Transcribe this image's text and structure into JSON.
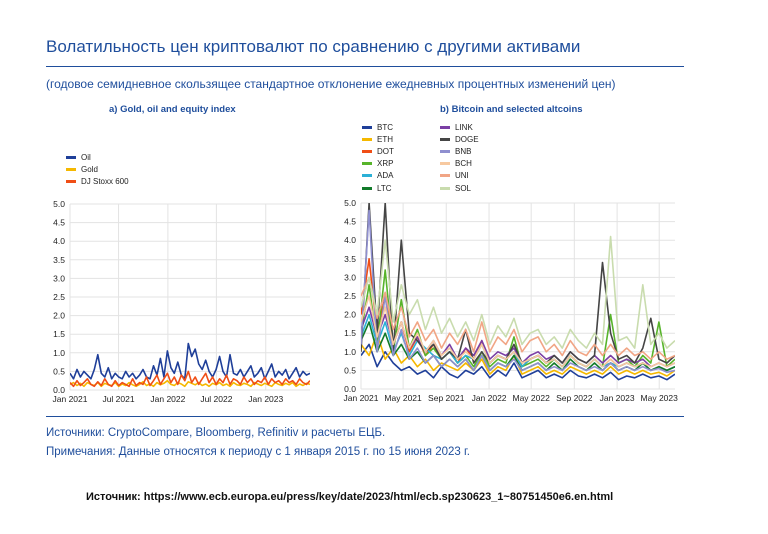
{
  "header": {
    "title": "Волатильность цен криптовалют по сравнению с другими активами",
    "subtitle": "(годовое семидневное скользящее стандартное отклонение ежедневных процентных изменений цен)"
  },
  "chart_data": [
    {
      "type": "line",
      "title": "a) Gold, oil and equity index",
      "ylim": [
        0,
        5
      ],
      "yticks": [
        "0.0",
        "0.5",
        "1.0",
        "1.5",
        "2.0",
        "2.5",
        "3.0",
        "3.5",
        "4.0",
        "4.5",
        "5.0"
      ],
      "xticks": [
        "Jan 2021",
        "Jul 2021",
        "Jan 2022",
        "Jul 2022",
        "Jan 2023"
      ],
      "xrange": [
        "2021-01-01",
        "2023-06-15"
      ],
      "grid": true,
      "legend_position": "top-left",
      "series": [
        {
          "name": "Oil",
          "color": "#1f3f99",
          "values": [
            0.45,
            0.3,
            0.55,
            0.35,
            0.5,
            0.4,
            0.3,
            0.55,
            0.95,
            0.45,
            0.35,
            0.6,
            0.3,
            0.45,
            0.35,
            0.3,
            0.5,
            0.35,
            0.45,
            0.3,
            0.4,
            0.55,
            0.35,
            0.3,
            0.65,
            0.4,
            0.85,
            0.35,
            1.05,
            0.6,
            0.45,
            0.75,
            0.4,
            0.3,
            1.25,
            0.9,
            1.1,
            0.7,
            0.55,
            0.8,
            0.5,
            0.35,
            0.55,
            0.9,
            0.5,
            0.35,
            0.95,
            0.45,
            0.4,
            0.55,
            0.35,
            0.5,
            0.65,
            0.35,
            0.45,
            0.6,
            0.3,
            0.5,
            0.7,
            0.35,
            0.5,
            0.4,
            0.55,
            0.3,
            0.45,
            0.6,
            0.35,
            0.5,
            0.4,
            0.45
          ]
        },
        {
          "name": "Gold",
          "color": "#f5b800",
          "values": [
            0.15,
            0.2,
            0.12,
            0.18,
            0.1,
            0.2,
            0.15,
            0.12,
            0.2,
            0.1,
            0.18,
            0.14,
            0.12,
            0.2,
            0.1,
            0.16,
            0.12,
            0.2,
            0.14,
            0.1,
            0.15,
            0.22,
            0.12,
            0.16,
            0.1,
            0.2,
            0.14,
            0.18,
            0.25,
            0.15,
            0.12,
            0.2,
            0.16,
            0.1,
            0.22,
            0.18,
            0.14,
            0.2,
            0.12,
            0.16,
            0.1,
            0.18,
            0.14,
            0.2,
            0.12,
            0.16,
            0.1,
            0.2,
            0.14,
            0.12,
            0.18,
            0.15,
            0.1,
            0.2,
            0.16,
            0.12,
            0.18,
            0.14,
            0.1,
            0.2,
            0.15,
            0.12,
            0.18,
            0.14,
            0.2,
            0.1,
            0.16,
            0.12,
            0.18,
            0.15
          ]
        },
        {
          "name": "DJ Stoxx 600",
          "color": "#f04e16",
          "values": [
            0.2,
            0.1,
            0.25,
            0.12,
            0.2,
            0.3,
            0.15,
            0.1,
            0.22,
            0.12,
            0.3,
            0.15,
            0.1,
            0.25,
            0.12,
            0.2,
            0.15,
            0.1,
            0.3,
            0.12,
            0.2,
            0.15,
            0.35,
            0.12,
            0.25,
            0.4,
            0.15,
            0.3,
            0.45,
            0.2,
            0.35,
            0.15,
            0.4,
            0.25,
            0.5,
            0.2,
            0.35,
            0.15,
            0.3,
            0.45,
            0.2,
            0.35,
            0.15,
            0.3,
            0.2,
            0.4,
            0.15,
            0.3,
            0.25,
            0.15,
            0.35,
            0.2,
            0.3,
            0.15,
            0.25,
            0.2,
            0.35,
            0.15,
            0.3,
            0.2,
            0.25,
            0.15,
            0.3,
            0.2,
            0.25,
            0.15,
            0.3,
            0.2,
            0.15,
            0.25
          ]
        }
      ]
    },
    {
      "type": "line",
      "title": "b) Bitcoin and selected altcoins",
      "ylim": [
        0,
        5
      ],
      "yticks": [
        "0.0",
        "0.5",
        "1.0",
        "1.5",
        "2.0",
        "2.5",
        "3.0",
        "3.5",
        "4.0",
        "4.5",
        "5.0"
      ],
      "xticks": [
        "Jan 2021",
        "May 2021",
        "Sep 2021",
        "Jan 2022",
        "May 2022",
        "Sep 2022",
        "Jan 2023",
        "May 2023"
      ],
      "xrange": [
        "2021-01-01",
        "2023-06-15"
      ],
      "grid": true,
      "legend_position": "top-left",
      "series": [
        {
          "name": "BTC",
          "color": "#1f3f99",
          "values": [
            0.9,
            1.2,
            0.6,
            1.0,
            0.7,
            0.5,
            0.6,
            0.4,
            0.5,
            0.3,
            0.6,
            0.4,
            0.3,
            0.5,
            0.4,
            0.6,
            0.3,
            0.5,
            0.35,
            0.7,
            0.3,
            0.4,
            0.5,
            0.3,
            0.4,
            0.3,
            0.5,
            0.35,
            0.3,
            0.4,
            0.3,
            0.45,
            0.25,
            0.35,
            0.3,
            0.4,
            0.3,
            0.35,
            0.25,
            0.4
          ]
        },
        {
          "name": "ETH",
          "color": "#f5b800",
          "values": [
            1.2,
            0.9,
            1.5,
            0.8,
            1.1,
            0.7,
            0.9,
            0.6,
            0.8,
            0.5,
            0.7,
            0.6,
            0.5,
            0.7,
            0.5,
            0.8,
            0.4,
            0.6,
            0.5,
            0.9,
            0.4,
            0.5,
            0.6,
            0.4,
            0.5,
            0.4,
            0.6,
            0.5,
            0.4,
            0.5,
            0.4,
            0.6,
            0.4,
            0.5,
            0.4,
            0.5,
            0.4,
            0.45,
            0.35,
            0.5
          ]
        },
        {
          "name": "DOT",
          "color": "#f04e16",
          "values": [
            2.0,
            3.5,
            1.5,
            2.5,
            1.2,
            1.8,
            1.0,
            1.4,
            0.9,
            1.2,
            0.8,
            1.0,
            0.7,
            1.1,
            0.8,
            1.3,
            0.7,
            0.9,
            0.8,
            1.0,
            0.6,
            0.8,
            0.9,
            0.7,
            0.8,
            0.6,
            0.9,
            0.7,
            0.6,
            0.8,
            0.6,
            0.8,
            0.6,
            0.7,
            0.6,
            0.7,
            0.5,
            0.6,
            0.5,
            0.6
          ]
        },
        {
          "name": "XRP",
          "color": "#57b42a",
          "values": [
            1.5,
            2.8,
            1.2,
            3.2,
            1.0,
            2.4,
            1.1,
            1.6,
            0.9,
            1.1,
            0.8,
            1.0,
            0.7,
            0.9,
            0.6,
            1.0,
            0.6,
            0.8,
            0.7,
            1.4,
            0.6,
            0.7,
            0.8,
            0.6,
            0.8,
            0.6,
            0.9,
            0.7,
            0.6,
            0.8,
            0.6,
            2.0,
            0.7,
            0.8,
            0.6,
            0.9,
            0.7,
            1.8,
            0.6,
            0.8
          ]
        },
        {
          "name": "ADA",
          "color": "#2bb0d6",
          "values": [
            1.4,
            2.0,
            1.2,
            1.8,
            1.0,
            1.5,
            0.9,
            1.3,
            1.1,
            0.9,
            0.8,
            1.0,
            0.7,
            0.9,
            0.8,
            1.2,
            0.7,
            0.9,
            0.8,
            1.0,
            0.6,
            0.8,
            0.9,
            0.7,
            0.8,
            0.6,
            0.9,
            0.7,
            0.6,
            0.8,
            0.6,
            0.7,
            0.6,
            0.7,
            0.6,
            0.7,
            0.5,
            0.6,
            0.5,
            0.6
          ]
        },
        {
          "name": "LTC",
          "color": "#127a2a",
          "values": [
            1.3,
            1.8,
            1.0,
            1.5,
            0.9,
            1.2,
            0.8,
            1.0,
            0.7,
            0.9,
            0.6,
            0.8,
            0.6,
            0.8,
            0.5,
            0.9,
            0.5,
            0.7,
            0.6,
            0.9,
            0.5,
            0.6,
            0.7,
            0.5,
            0.7,
            0.5,
            0.8,
            0.6,
            0.5,
            0.7,
            0.5,
            0.7,
            0.5,
            0.6,
            0.5,
            0.7,
            0.5,
            0.6,
            0.5,
            0.6
          ]
        },
        {
          "name": "LINK",
          "color": "#7b3fa5",
          "values": [
            1.6,
            2.2,
            1.4,
            2.0,
            1.2,
            1.8,
            1.1,
            1.4,
            1.0,
            1.3,
            0.9,
            1.2,
            0.8,
            1.1,
            0.9,
            1.3,
            0.8,
            1.0,
            0.9,
            1.1,
            0.7,
            0.9,
            1.0,
            0.8,
            0.9,
            0.7,
            1.0,
            0.8,
            0.7,
            0.9,
            0.7,
            0.9,
            0.7,
            0.8,
            0.7,
            0.8,
            0.6,
            0.7,
            0.6,
            0.7
          ]
        },
        {
          "name": "DOGE",
          "color": "#454545",
          "values": [
            1.0,
            5.0,
            1.5,
            5.0,
            1.0,
            4.0,
            1.5,
            1.3,
            1.0,
            1.2,
            0.8,
            1.0,
            0.8,
            1.6,
            0.7,
            1.0,
            0.7,
            0.9,
            0.8,
            1.2,
            0.7,
            0.8,
            0.9,
            0.7,
            0.9,
            0.7,
            1.0,
            0.8,
            0.7,
            0.9,
            3.4,
            1.5,
            0.8,
            0.9,
            0.7,
            1.1,
            1.9,
            0.8,
            0.7,
            0.9
          ]
        },
        {
          "name": "BNB",
          "color": "#8f8fcf",
          "values": [
            1.2,
            4.8,
            1.0,
            2.5,
            0.9,
            1.6,
            0.8,
            1.1,
            0.7,
            0.9,
            0.6,
            0.8,
            0.6,
            0.8,
            0.5,
            0.9,
            0.5,
            0.7,
            0.6,
            0.8,
            0.5,
            0.6,
            0.7,
            0.5,
            0.6,
            0.5,
            0.7,
            0.6,
            0.5,
            0.6,
            0.5,
            0.7,
            0.5,
            0.6,
            0.5,
            0.6,
            0.5,
            0.55,
            0.45,
            0.5
          ]
        },
        {
          "name": "BCH",
          "color": "#f7c9a0",
          "values": [
            1.8,
            2.5,
            1.4,
            2.2,
            1.2,
            1.8,
            1.1,
            1.5,
            1.0,
            1.3,
            0.9,
            1.1,
            0.8,
            1.0,
            0.8,
            1.2,
            0.7,
            0.9,
            0.8,
            1.0,
            0.7,
            0.8,
            0.9,
            0.7,
            0.8,
            0.6,
            0.9,
            0.7,
            0.6,
            0.8,
            0.6,
            0.8,
            0.6,
            0.7,
            0.6,
            0.7,
            0.6,
            0.7,
            0.6,
            0.7
          ]
        },
        {
          "name": "UNI",
          "color": "#f1a585",
          "values": [
            2.5,
            3.0,
            1.9,
            2.6,
            1.6,
            2.2,
            1.4,
            1.8,
            1.3,
            1.6,
            1.1,
            1.5,
            1.2,
            1.6,
            1.0,
            1.8,
            1.0,
            1.4,
            1.2,
            1.6,
            1.0,
            1.3,
            1.4,
            1.0,
            1.2,
            0.9,
            1.3,
            1.0,
            0.9,
            1.2,
            0.9,
            1.2,
            0.9,
            1.1,
            0.9,
            1.0,
            0.8,
            1.0,
            0.8,
            0.9
          ]
        },
        {
          "name": "SOL",
          "color": "#c9dcae",
          "values": [
            2.2,
            3.0,
            2.0,
            4.0,
            1.8,
            2.8,
            2.0,
            2.4,
            1.6,
            2.2,
            1.5,
            1.9,
            1.4,
            1.8,
            1.3,
            2.0,
            1.2,
            1.7,
            1.4,
            1.9,
            1.2,
            1.5,
            1.6,
            1.2,
            1.4,
            1.1,
            1.6,
            1.3,
            1.1,
            1.5,
            1.2,
            4.1,
            1.3,
            1.4,
            1.1,
            2.8,
            1.2,
            1.5,
            1.1,
            1.3
          ]
        }
      ]
    }
  ],
  "footer": {
    "sources": "Источники: CryptoCompare, Bloomberg, Refinitiv и расчеты ЕЦБ.",
    "notes": "Примечания: Данные относятся к периоду с 1 января 2015 г. по 15 июня 2023 г.",
    "reference": "Источник: https://www.ecb.europa.eu/press/key/date/2023/html/ecb.sp230623_1~80751450e6.en.html"
  }
}
